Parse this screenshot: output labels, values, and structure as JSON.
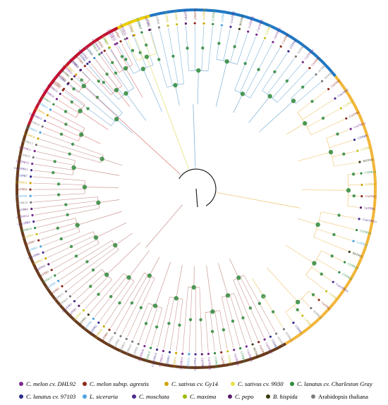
{
  "tree": {
    "clades": [
      {
        "color": "#1f77c4",
        "branch_color": "#7fb2d6",
        "leaves": [
          "CmTPR1",
          "CmTPR9",
          "CmTPR11",
          "ClTPR3",
          "ClTPR6",
          "CmTPR4",
          "CmTPR16",
          "ClTPR17",
          "CmTPR15",
          "AtTPR5",
          "AtTPR6",
          "AtTPR7",
          "AtTPR8",
          "AtTPR9",
          "CsTPR9",
          "CsTPR1",
          "CpTPR3",
          "CmTPR7",
          "CsTPR14",
          "ClTPR11",
          "LsTPR5",
          "CmoTPR2",
          "BhTPR4",
          "CmTPR12",
          "CmTPR15",
          "CsTPR8",
          "CmTPR13",
          "CmTPR3",
          "ClTPR6",
          "AtTPR16",
          "CmTPR14",
          "CmTPR8",
          "AtTPR1",
          "AtTPR13"
        ]
      },
      {
        "color": "#f2b63a",
        "branch_color": "#f0c878",
        "leaves": [
          "CmTPR2",
          "CmoTPR7",
          "CsTPR6",
          "CmTPR5",
          "CmTPR11",
          "ClTPR9",
          "CsTPR4",
          "BhTPR3",
          "ClTPR14",
          "CsTPR13",
          "CmTPR3",
          "CpTPR8",
          "CmoTPR13",
          "ClTPR16",
          "LsTPR15",
          "BhTPR5",
          "ClTPR19",
          "ClTPR20",
          "CmoTPR10",
          "CsTPR5",
          "CmTPR2",
          "AtTPR20",
          "CsTPR3",
          "ClTPR5",
          "AtTPR12"
        ]
      },
      {
        "color": "#6a3d1e",
        "branch_color": "#c89a94",
        "leaves": [
          "AtTPR17",
          "ClTPR4",
          "CmTPR17",
          "CmTPR8",
          "BhTPR2",
          "CmTPR13",
          "ClTPR18",
          "CmTPR19",
          "CsTPR7",
          "CmTPR6",
          "ClTPR15",
          "CmTPR10",
          "CpTPR9",
          "CmoTPR4",
          "LsTPR11",
          "CmTPR10",
          "CsTPR11",
          "ClTPR1",
          "CmTPR14",
          "CmoTPR14",
          "ClTPR12",
          "CmTPR18",
          "AtTPR4",
          "AtTPR10",
          "AtTPR11",
          "AtTPR2",
          "AtTPR3",
          "CmTPR6",
          "CsTPR10",
          "ClTPR2",
          "LsTPR6",
          "BhTPR1",
          "CsTPR1",
          "CpTPR1",
          "CmoTPR1",
          "AtTPR14",
          "AtTPR15",
          "CmTPR5",
          "LsTPR8",
          "ClTPR13",
          "CmTPR9",
          "CpTPR5",
          "CsTPR12",
          "CmoTPR6",
          "LsTPR3",
          "CmTPR7",
          "CsTPR2",
          "ClTPR10",
          "CmoTPR9",
          "CmTPR12",
          "CpTPR4",
          "AtTPR18",
          "LsTPR9",
          "CmTPR4",
          "CsTPR15",
          "ClTPR7",
          "CmoTPR11",
          "CmTPR16",
          "AtTPR19",
          "CmTPR11",
          "AtTPR12",
          "CsTPR16",
          "LsTPR10"
        ]
      },
      {
        "color": "#c8102e",
        "branch_color": "#e08a8a",
        "leaves": [
          "AtTPR14",
          "CmoTPR15",
          "CsTPR18",
          "LsTPR12",
          "ClTPR21",
          "CmTPR10",
          "CpTPR13",
          "CmTPR3",
          "ClTPR8",
          "BhTPR6",
          "CsTPR17",
          "CpTPR12",
          "CmTPR9",
          "CmoTPR5",
          "LsTPR7",
          "ClTPR10",
          "CmTPR1",
          "CsTPR3",
          "CmTPR17",
          "CmTPR7"
        ]
      },
      {
        "color": "#f0d000",
        "branch_color": "#e6e07a",
        "leaves": [
          "CmTPR13",
          "CsTPR10",
          "ClTPR12",
          "CpTPR6"
        ]
      }
    ]
  },
  "legend": {
    "items": [
      {
        "label": "C. melon cv. DHL92",
        "color": "#7b2a8e",
        "italic": true
      },
      {
        "label": "C. melon subsp. agrestis",
        "color": "#8b2a1a",
        "italic": true
      },
      {
        "label": "C. sativus cv. Gy14",
        "color": "#d2a400",
        "italic": true
      },
      {
        "label": "C. sativus cv. 9930",
        "color": "#e8e04a",
        "italic": true
      },
      {
        "label": "C. lanatus cv. Charleston Gray",
        "color": "#2e8b3e",
        "italic": true
      },
      {
        "label": "C. lanatus cv. 97103",
        "color": "#2b2a8a",
        "italic": true
      },
      {
        "label": "L. siceraria",
        "color": "#4aa3e0",
        "italic": true
      },
      {
        "label": "C. moschata",
        "color": "#4b2a8e",
        "italic": true
      },
      {
        "label": "C. maxima",
        "color": "#9ab800",
        "italic": true
      },
      {
        "label": "C. pepo",
        "color": "#5a1e6e",
        "italic": true
      },
      {
        "label": "B. hispida",
        "color": "#3a3a10",
        "italic": true
      },
      {
        "label": "Arabidopsis thaliana",
        "color": "#7a7a7a",
        "italic": false
      }
    ]
  }
}
